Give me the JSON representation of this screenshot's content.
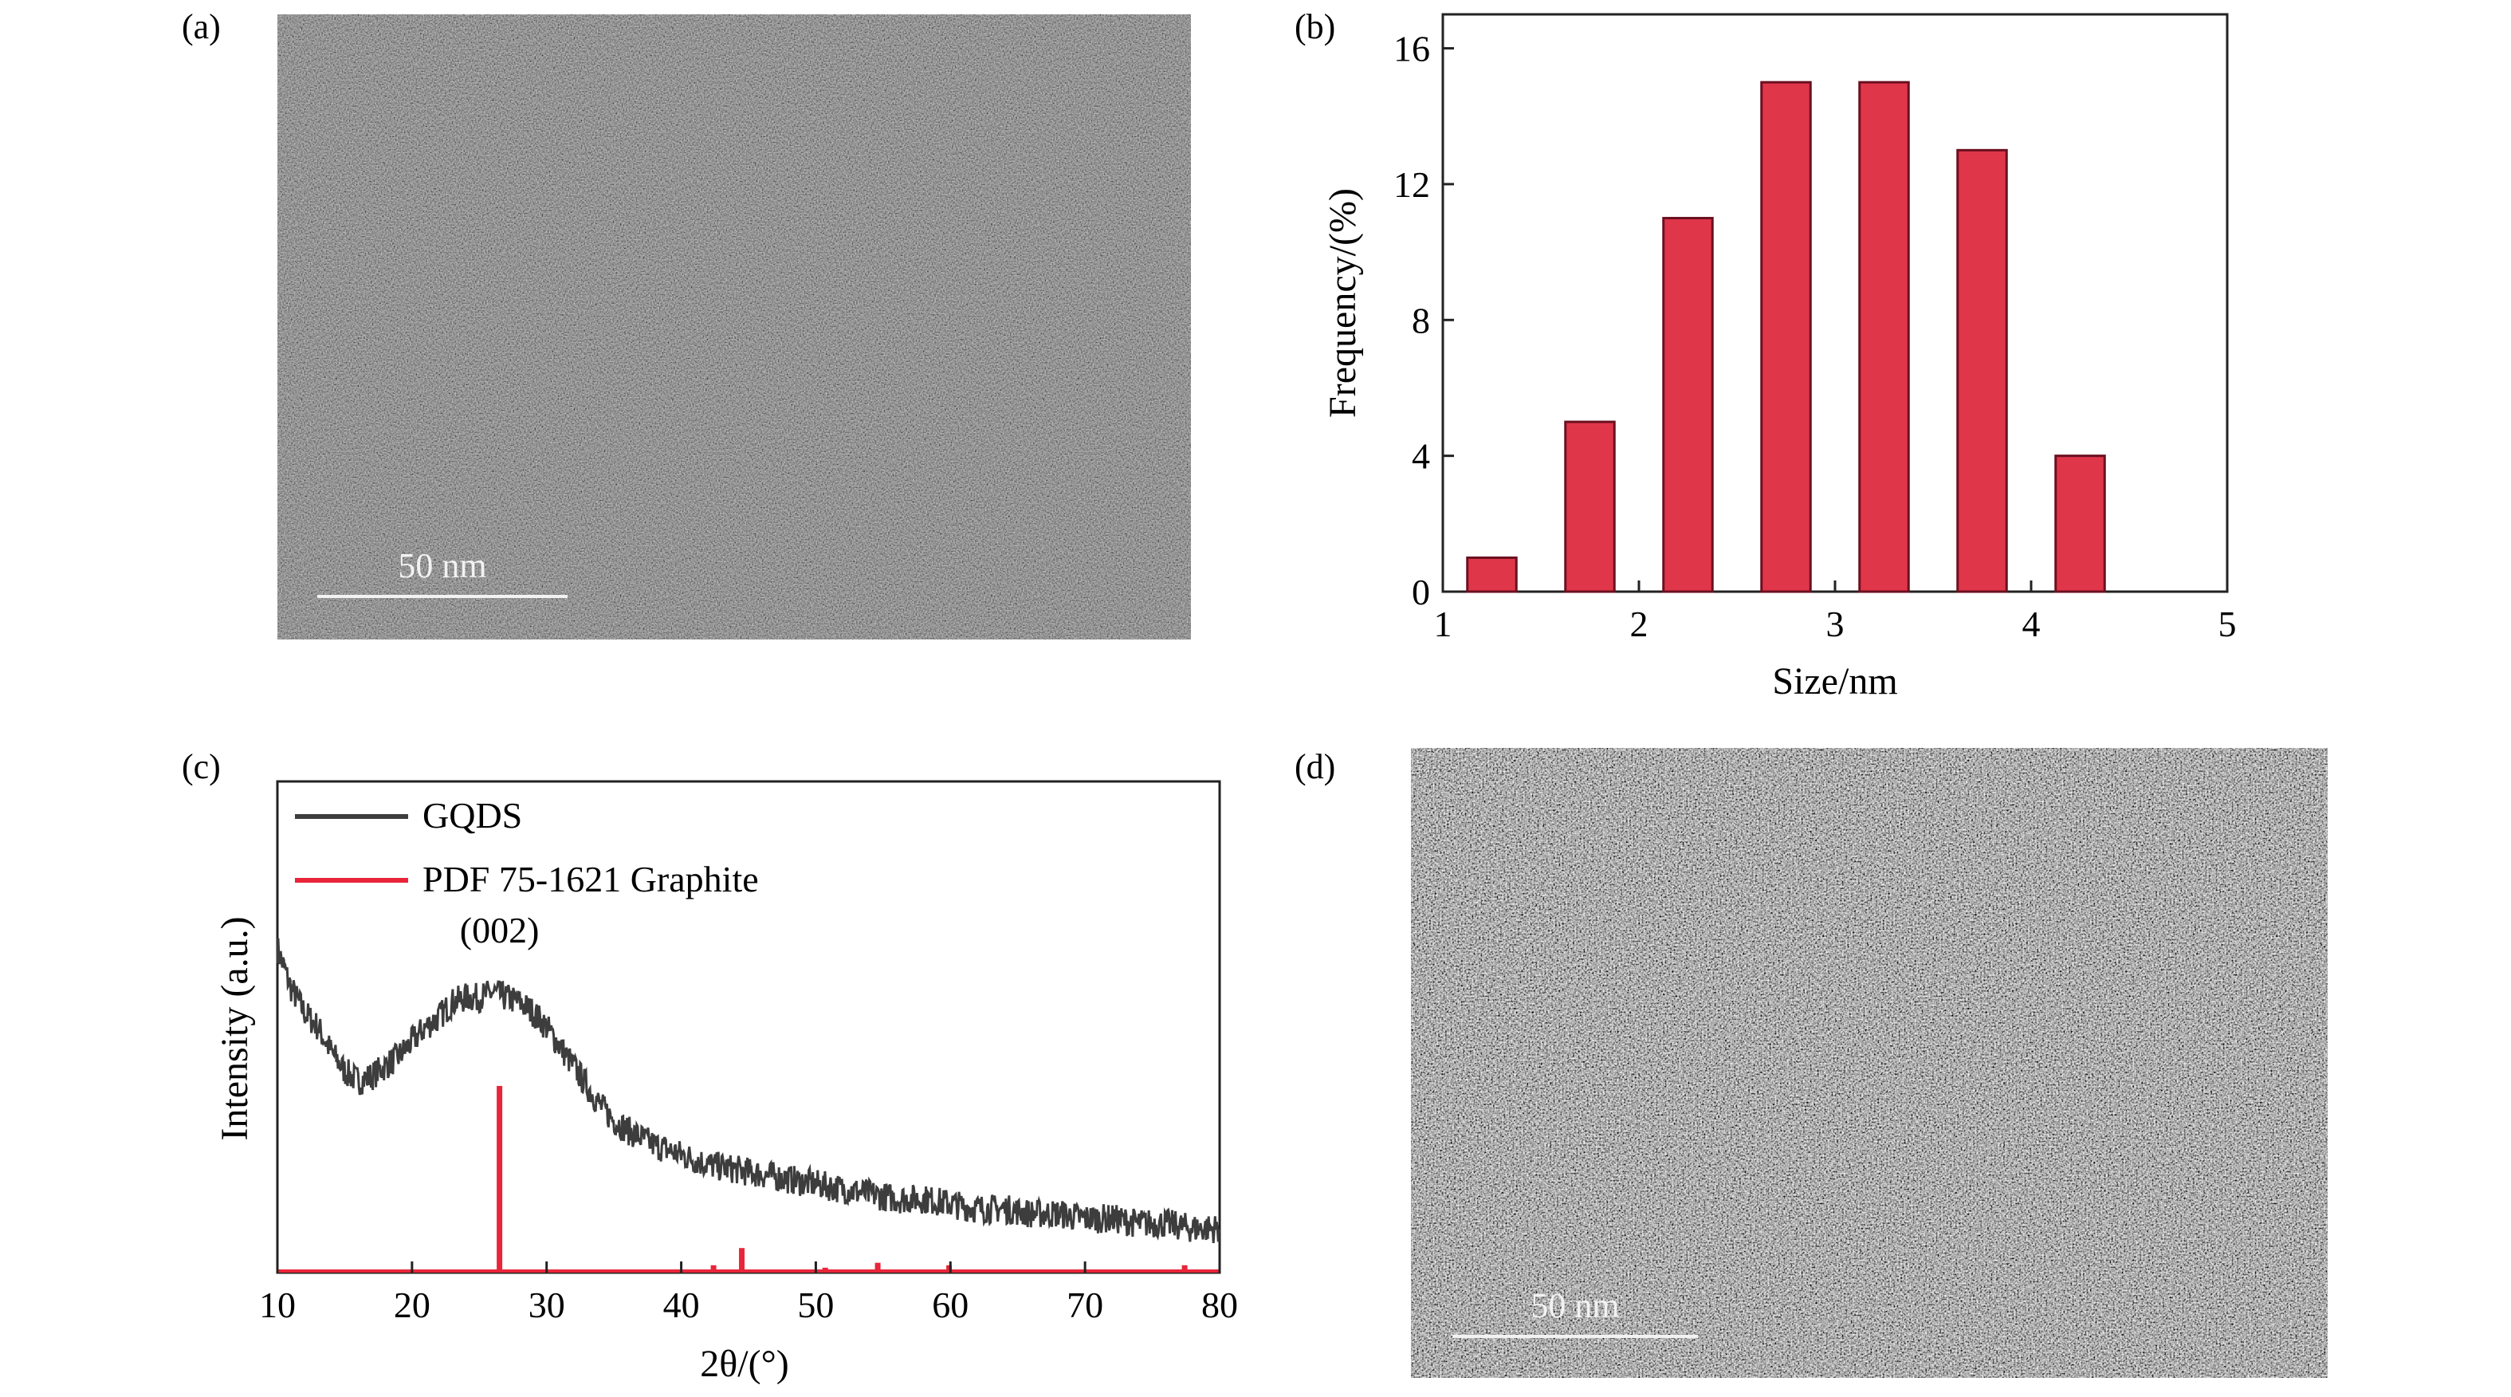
{
  "panels": {
    "a": {
      "label": "(a)",
      "scale_bar": "50 nm"
    },
    "b": {
      "label": "(b)"
    },
    "c": {
      "label": "(c)"
    },
    "d": {
      "label": "(d)",
      "scale_bar": "50 nm"
    }
  },
  "colors": {
    "bar_fill": "#e0364a",
    "bar_edge": "#6b1020",
    "gqds_line": "#3d3d3d",
    "pdf_line": "#e8253a",
    "axis": "#222222"
  },
  "chart_data": [
    {
      "type": "bar",
      "panel": "b",
      "xlabel": "Size/nm",
      "ylabel": "Frequency/(%)",
      "xlim": [
        1,
        5
      ],
      "ylim": [
        0,
        17
      ],
      "xticks": [
        "1",
        "2",
        "3",
        "4",
        "5"
      ],
      "yticks": [
        "0",
        "4",
        "8",
        "12",
        "16"
      ],
      "x": [
        1.25,
        1.75,
        2.25,
        2.75,
        3.25,
        3.75,
        4.25
      ],
      "values": [
        1,
        5,
        11,
        15,
        15,
        13,
        4
      ],
      "bar_width": 0.25,
      "grid": false
    },
    {
      "type": "line",
      "panel": "c",
      "xlabel": "2θ/(°)",
      "ylabel": "Intensity (a.u.)",
      "xlim": [
        10,
        80
      ],
      "ylim": [
        0,
        1
      ],
      "xticks": [
        "10",
        "20",
        "30",
        "40",
        "50",
        "60",
        "70",
        "80"
      ],
      "legend_position": "top-left",
      "annotation": {
        "text": "(002)",
        "x": 26.5
      },
      "series": [
        {
          "name": "GQDS",
          "x": [
            10,
            11,
            12,
            13,
            14,
            15,
            16,
            17,
            18,
            19,
            20,
            21,
            22,
            23,
            24,
            25,
            26,
            27,
            28,
            29,
            30,
            31,
            32,
            33,
            34,
            35,
            36,
            38,
            40,
            42,
            44,
            46,
            48,
            50,
            52,
            54,
            56,
            58,
            60,
            62,
            64,
            66,
            68,
            70,
            72,
            74,
            76,
            78,
            80
          ],
          "values": [
            0.66,
            0.58,
            0.53,
            0.5,
            0.45,
            0.41,
            0.39,
            0.4,
            0.42,
            0.44,
            0.47,
            0.5,
            0.52,
            0.55,
            0.56,
            0.56,
            0.57,
            0.56,
            0.55,
            0.53,
            0.5,
            0.46,
            0.42,
            0.38,
            0.34,
            0.31,
            0.29,
            0.26,
            0.24,
            0.22,
            0.21,
            0.2,
            0.19,
            0.18,
            0.17,
            0.16,
            0.15,
            0.15,
            0.14,
            0.13,
            0.13,
            0.12,
            0.12,
            0.11,
            0.11,
            0.1,
            0.1,
            0.09,
            0.09
          ]
        },
        {
          "name": "PDF 75-1621 Graphite",
          "type": "stick",
          "x": [
            26.5,
            42.4,
            44.5,
            50.7,
            54.6,
            59.9,
            77.4
          ],
          "values": [
            0.38,
            0.015,
            0.05,
            0.01,
            0.02,
            0.015,
            0.015
          ]
        }
      ]
    }
  ]
}
